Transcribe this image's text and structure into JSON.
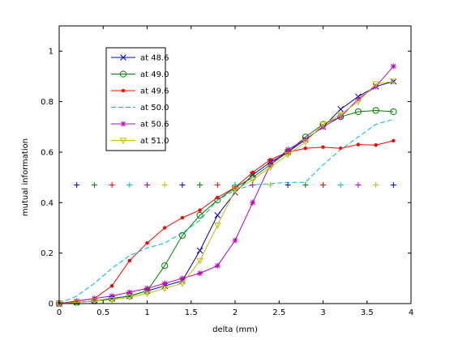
{
  "chart_data": {
    "type": "line",
    "title": "",
    "xlabel": "delta (mm)",
    "ylabel": "mutual information",
    "xlim": [
      0,
      4
    ],
    "ylim": [
      0,
      1.1
    ],
    "xticks": [
      0,
      0.5,
      1,
      1.5,
      2,
      2.5,
      3,
      3.5,
      4
    ],
    "xtick_labels": [
      "0",
      "0.5",
      "1",
      "1.5",
      "2",
      "2.5",
      "3",
      "3.5",
      "4"
    ],
    "yticks": [
      0,
      0.2,
      0.4,
      0.6,
      0.8,
      1
    ],
    "ytick_labels": [
      "0",
      "0.2",
      "0.4",
      "0.6",
      "0.8",
      "1"
    ],
    "grid": false,
    "legend_position": "top-left",
    "x": [
      0,
      0.2,
      0.4,
      0.6,
      0.8,
      1.0,
      1.2,
      1.4,
      1.6,
      1.8,
      2.0,
      2.2,
      2.4,
      2.6,
      2.8,
      3.0,
      3.2,
      3.4,
      3.6,
      3.8
    ],
    "series": [
      {
        "name": "at 48.6",
        "color": "#0000bf",
        "marker": "x",
        "dash": "solid",
        "values": [
          0.0,
          0.005,
          0.01,
          0.02,
          0.03,
          0.05,
          0.07,
          0.09,
          0.21,
          0.35,
          0.44,
          0.51,
          0.56,
          0.6,
          0.65,
          0.7,
          0.77,
          0.82,
          0.86,
          0.88
        ]
      },
      {
        "name": "at 49.0",
        "color": "#008000",
        "marker": "o",
        "dash": "solid",
        "values": [
          0.0,
          0.005,
          0.01,
          0.02,
          0.03,
          0.05,
          0.15,
          0.27,
          0.35,
          0.41,
          0.46,
          0.5,
          0.55,
          0.6,
          0.66,
          0.71,
          0.74,
          0.76,
          0.765,
          0.76
        ]
      },
      {
        "name": "at 49.6",
        "color": "#ff0000",
        "marker": "dot",
        "dash": "solid",
        "values": [
          0.0,
          0.01,
          0.02,
          0.07,
          0.17,
          0.24,
          0.3,
          0.34,
          0.37,
          0.42,
          0.46,
          0.52,
          0.57,
          0.6,
          0.615,
          0.62,
          0.615,
          0.63,
          0.628,
          0.645
        ]
      },
      {
        "name": "at 50.0",
        "color": "#00bfbf",
        "marker": "none",
        "dash": "dashed",
        "values": [
          0.0,
          0.03,
          0.08,
          0.14,
          0.19,
          0.22,
          0.24,
          0.28,
          0.33,
          0.41,
          0.45,
          0.47,
          0.475,
          0.48,
          0.48,
          0.55,
          0.61,
          0.66,
          0.71,
          0.73
        ]
      },
      {
        "name": "at 50.6",
        "color": "#bf00bf",
        "marker": "star",
        "dash": "solid",
        "values": [
          0.0,
          0.01,
          0.02,
          0.03,
          0.045,
          0.06,
          0.08,
          0.1,
          0.12,
          0.15,
          0.25,
          0.4,
          0.55,
          0.61,
          0.65,
          0.7,
          0.74,
          0.81,
          0.86,
          0.94
        ]
      },
      {
        "name": "at 51.0",
        "color": "#bfbf00",
        "marker": "triangle-down",
        "dash": "solid",
        "values": [
          0.0,
          0.005,
          0.01,
          0.015,
          0.025,
          0.04,
          0.06,
          0.08,
          0.17,
          0.31,
          0.45,
          0.49,
          0.54,
          0.59,
          0.64,
          0.71,
          0.75,
          0.8,
          0.87,
          0.88
        ]
      }
    ],
    "reference_markers": {
      "y": 0.47,
      "marker": "+",
      "x": [
        0.2,
        0.4,
        0.6,
        0.8,
        1.0,
        1.2,
        1.4,
        1.6,
        1.8,
        2.0,
        2.2,
        2.4,
        2.6,
        2.8,
        3.0,
        3.2,
        3.4,
        3.6,
        3.8
      ],
      "colors": [
        "#0000bf",
        "#008000",
        "#ff0000",
        "#00bfbf",
        "#bf00bf",
        "#bfbf00",
        "#0000bf",
        "#008000",
        "#ff0000",
        "#00bfbf",
        "#bf00bf",
        "#bfbf00",
        "#0000bf",
        "#008000",
        "#ff0000",
        "#00bfbf",
        "#bf00bf",
        "#bfbf00",
        "#0000bf"
      ]
    }
  }
}
